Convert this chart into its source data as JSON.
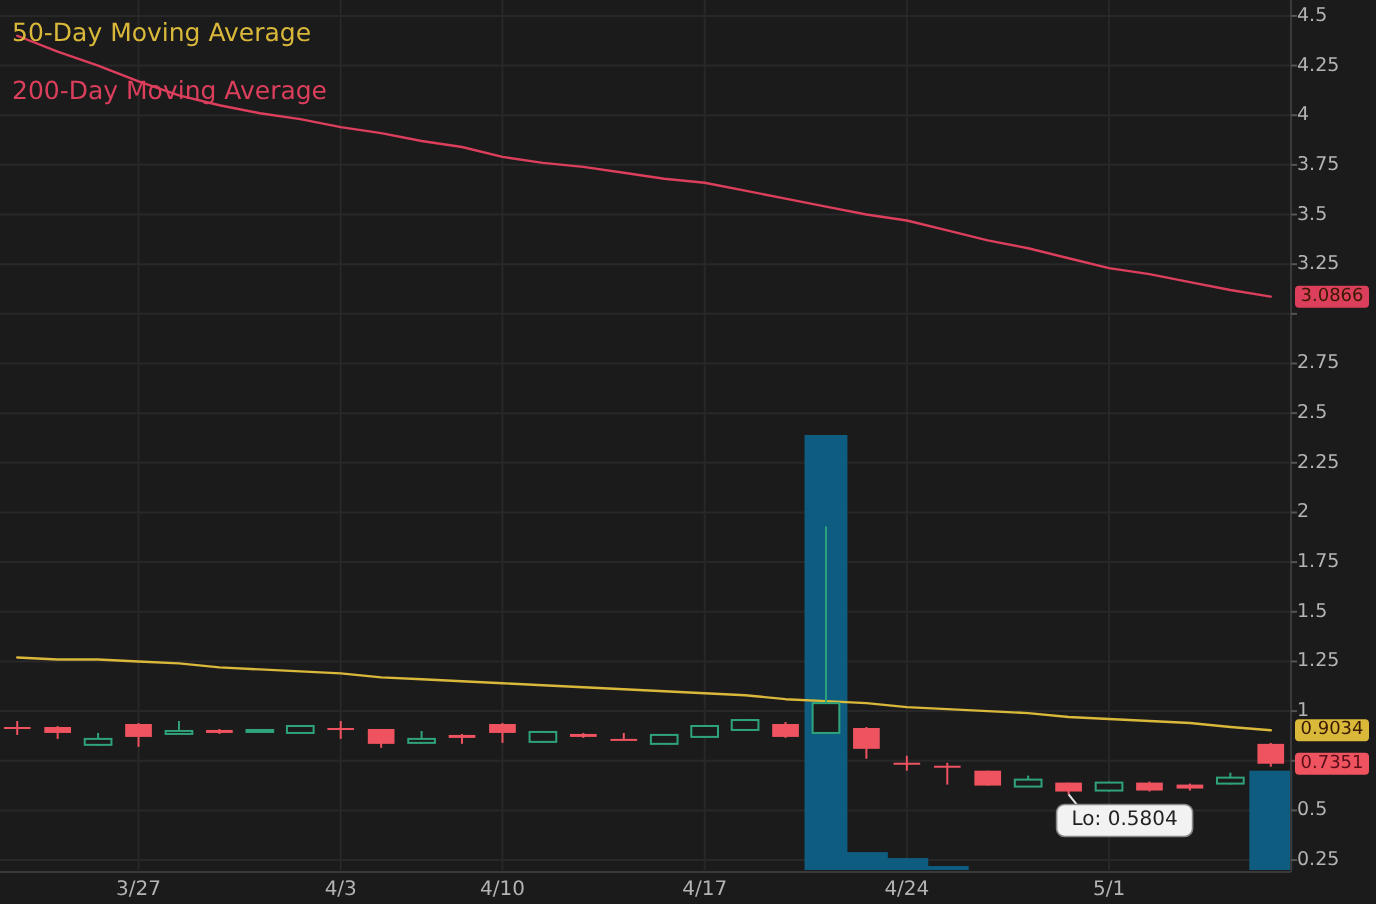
{
  "chart_data": {
    "type": "candlestick",
    "categories": [
      null,
      null,
      null,
      "3/27",
      null,
      null,
      null,
      null,
      "4/3",
      null,
      null,
      null,
      "4/10",
      null,
      null,
      null,
      null,
      "4/17",
      null,
      null,
      null,
      null,
      "4/24",
      null,
      null,
      null,
      null,
      "5/1",
      null,
      null,
      null,
      null
    ],
    "ohlc": [
      [
        0.92,
        0.95,
        0.88,
        0.915
      ],
      [
        0.92,
        0.925,
        0.86,
        0.89
      ],
      [
        0.83,
        0.89,
        0.825,
        0.86
      ],
      [
        0.935,
        0.94,
        0.82,
        0.87
      ],
      [
        0.885,
        0.95,
        0.885,
        0.9
      ],
      [
        0.905,
        0.91,
        0.885,
        0.89
      ],
      [
        0.9,
        0.91,
        0.9,
        0.905
      ],
      [
        0.89,
        0.93,
        0.89,
        0.925
      ],
      [
        0.915,
        0.95,
        0.86,
        0.91
      ],
      [
        0.91,
        0.91,
        0.815,
        0.835
      ],
      [
        0.84,
        0.9,
        0.835,
        0.86
      ],
      [
        0.88,
        0.885,
        0.835,
        0.865
      ],
      [
        0.935,
        0.94,
        0.84,
        0.89
      ],
      [
        0.845,
        0.9,
        0.84,
        0.895
      ],
      [
        0.885,
        0.89,
        0.865,
        0.87
      ],
      [
        0.86,
        0.89,
        0.85,
        0.855
      ],
      [
        0.835,
        0.885,
        0.83,
        0.88
      ],
      [
        0.87,
        0.93,
        0.865,
        0.925
      ],
      [
        0.905,
        0.96,
        0.9,
        0.955
      ],
      [
        0.935,
        0.945,
        0.865,
        0.87
      ],
      [
        0.89,
        1.93,
        0.885,
        1.04
      ],
      [
        0.915,
        0.92,
        0.76,
        0.81
      ],
      [
        0.74,
        0.775,
        0.7,
        0.73
      ],
      [
        0.725,
        0.74,
        0.63,
        0.72
      ],
      [
        0.7,
        0.7,
        0.625,
        0.625
      ],
      [
        0.62,
        0.675,
        0.62,
        0.655
      ],
      [
        0.64,
        0.64,
        0.5804,
        0.595
      ],
      [
        0.6,
        0.645,
        0.595,
        0.64
      ],
      [
        0.64,
        0.645,
        0.595,
        0.6
      ],
      [
        0.63,
        0.635,
        0.6,
        0.61
      ],
      [
        0.635,
        0.69,
        0.63,
        0.665
      ],
      [
        0.835,
        0.84,
        0.72,
        0.7351
      ]
    ],
    "colors": [
      "#ef5360",
      "#ef5360",
      "#2fa37a",
      "#ef5360",
      "#2fa37a",
      "#ef5360",
      "#2fa37a",
      "#2fa37a",
      "#ef5360",
      "#ef5360",
      "#2fa37a",
      "#ef5360",
      "#ef5360",
      "#2fa37a",
      "#ef5360",
      "#ef5360",
      "#2fa37a",
      "#2fa37a",
      "#2fa37a",
      "#ef5360",
      "#2fa37a",
      "#ef5360",
      "#ef5360",
      "#ef5360",
      "#ef5360",
      "#2fa37a",
      "#ef5360",
      "#2fa37a",
      "#ef5360",
      "#ef5360",
      "#2fa37a",
      "#ef5360"
    ],
    "series": [
      {
        "type": "bar",
        "color": "#0e5d80",
        "values": [
          null,
          null,
          null,
          null,
          null,
          null,
          null,
          null,
          null,
          null,
          null,
          null,
          null,
          null,
          null,
          null,
          null,
          null,
          null,
          null,
          2.39,
          0.29,
          0.26,
          0.22,
          null,
          null,
          null,
          null,
          null,
          null,
          null,
          0.7
        ]
      },
      {
        "type": "line",
        "name": "50-Day Moving Average",
        "color": "#d9b83a",
        "values": [
          1.27,
          1.26,
          1.26,
          1.25,
          1.24,
          1.22,
          1.21,
          1.2,
          1.19,
          1.17,
          1.16,
          1.15,
          1.14,
          1.13,
          1.12,
          1.11,
          1.1,
          1.09,
          1.08,
          1.06,
          1.05,
          1.04,
          1.02,
          1.01,
          1.0,
          0.99,
          0.97,
          0.96,
          0.95,
          0.94,
          0.92,
          0.9034
        ],
        "value_labels": [
          null,
          null,
          null,
          null,
          null,
          null,
          null,
          null,
          null,
          null,
          null,
          null,
          null,
          null,
          null,
          null,
          null,
          null,
          null,
          null,
          null,
          null,
          null,
          null,
          null,
          null,
          null,
          null,
          null,
          null,
          null,
          "0.9034"
        ]
      },
      {
        "type": "line",
        "name": "200-Day Moving Average",
        "color": "#dc3f5c",
        "values": [
          4.4,
          4.32,
          4.25,
          4.17,
          4.1,
          4.05,
          4.01,
          3.98,
          3.94,
          3.91,
          3.87,
          3.84,
          3.79,
          3.76,
          3.74,
          3.71,
          3.68,
          3.66,
          3.62,
          3.58,
          3.54,
          3.5,
          3.47,
          3.42,
          3.37,
          3.33,
          3.28,
          3.23,
          3.2,
          3.16,
          3.12,
          3.0866
        ],
        "value_labels": [
          null,
          null,
          null,
          null,
          null,
          null,
          null,
          null,
          null,
          null,
          null,
          null,
          null,
          null,
          null,
          null,
          null,
          null,
          null,
          null,
          null,
          null,
          null,
          null,
          null,
          null,
          null,
          null,
          null,
          null,
          null,
          "3.0866"
        ]
      }
    ],
    "ylim": [
      0.2,
      4.58
    ],
    "yticks": [
      0.25,
      0.5,
      {
        "value": 0.75,
        "label": null
      },
      1,
      1.25,
      1.5,
      1.75,
      2,
      2.25,
      2.5,
      2.75,
      {
        "value": 3,
        "label": null
      },
      3.25,
      3.5,
      3.75,
      4,
      4.25,
      4.5
    ],
    "grid": true,
    "legend": "top left",
    "annotations": [
      {
        "text": "Lo: 0.5804",
        "y": 0.5804
      },
      "0.7351"
    ]
  }
}
